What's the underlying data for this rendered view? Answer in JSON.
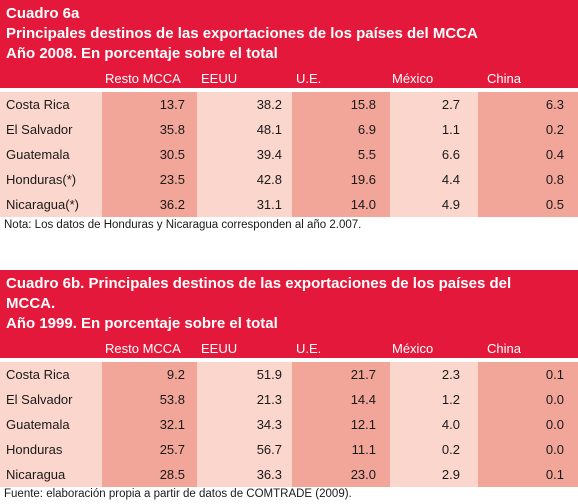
{
  "columns": [
    "Resto MCCA",
    "EEUU",
    "U.E.",
    "México",
    "China"
  ],
  "table_a": {
    "title_line1": "Cuadro 6a",
    "title_line2": "Principales destinos de las exportaciones de los países del MCCA",
    "title_line3": "Año 2008. En porcentaje sobre el total",
    "rows": [
      {
        "country": "Costa Rica",
        "values": [
          "13.7",
          "38.2",
          "15.8",
          "2.7",
          "6.3"
        ]
      },
      {
        "country": "El Salvador",
        "values": [
          "35.8",
          "48.1",
          "6.9",
          "1.1",
          "0.2"
        ]
      },
      {
        "country": "Guatemala",
        "values": [
          "30.5",
          "39.4",
          "5.5",
          "6.6",
          "0.4"
        ]
      },
      {
        "country": "Honduras(*)",
        "values": [
          "23.5",
          "42.8",
          "19.6",
          "4.4",
          "0.8"
        ]
      },
      {
        "country": "Nicaragua(*)",
        "values": [
          "36.2",
          "31.1",
          "14.0",
          "4.9",
          "0.5"
        ]
      }
    ],
    "note": "Nota: Los datos de Honduras y Nicaragua corresponden al año 2.007."
  },
  "table_b": {
    "title_line1": "Cuadro 6b. Principales destinos de las exportaciones de los países del",
    "title_line2": "MCCA.",
    "title_line3": "Año 1999. En porcentaje sobre el total",
    "rows": [
      {
        "country": "Costa Rica",
        "values": [
          "9.2",
          "51.9",
          "21.7",
          "2.3",
          "0.1"
        ]
      },
      {
        "country": "El Salvador",
        "values": [
          "53.8",
          "21.3",
          "14.4",
          "1.2",
          "0.0"
        ]
      },
      {
        "country": "Guatemala",
        "values": [
          "32.1",
          "34.3",
          "12.1",
          "4.0",
          "0.0"
        ]
      },
      {
        "country": "Honduras",
        "values": [
          "25.7",
          "56.7",
          "11.1",
          "0.2",
          "0.0"
        ]
      },
      {
        "country": "Nicaragua",
        "values": [
          "28.5",
          "36.3",
          "23.0",
          "2.9",
          "0.1"
        ]
      }
    ],
    "source": "Fuente: elaboración propia a partir de datos de COMTRADE (2009)."
  },
  "colors": {
    "header_red": "#e3183a",
    "cell_light": "#fbd6cc",
    "cell_dark": "#f2a69a"
  }
}
